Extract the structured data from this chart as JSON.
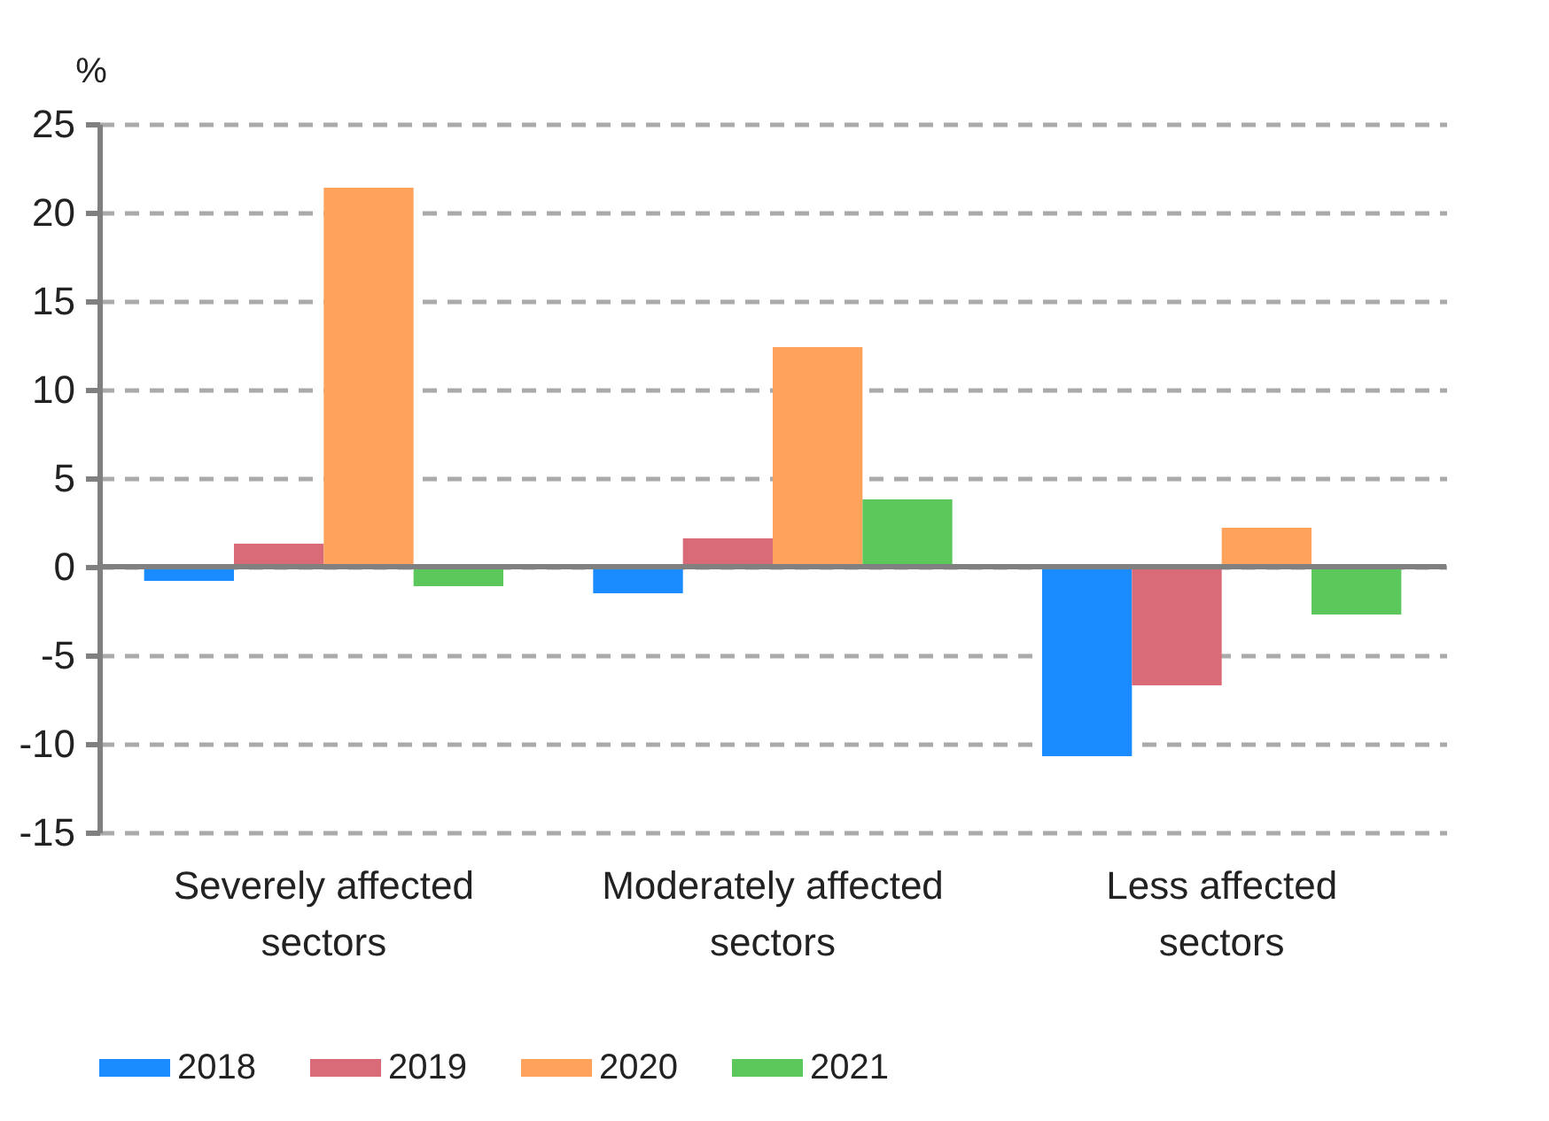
{
  "chart_data": {
    "type": "bar",
    "ylabel": "%",
    "categories": [
      "Severely affected sectors",
      "Moderately affected sectors",
      "Less affected sectors"
    ],
    "series": [
      {
        "name": "2018",
        "color": "#1a8cff",
        "values": [
          -0.8,
          -1.5,
          -10.7
        ]
      },
      {
        "name": "2019",
        "color": "#d96b78",
        "values": [
          1.3,
          1.6,
          -6.7
        ]
      },
      {
        "name": "2020",
        "color": "#ffa35c",
        "values": [
          21.4,
          12.4,
          2.2
        ]
      },
      {
        "name": "2021",
        "color": "#5cc85c",
        "values": [
          -1.1,
          3.8,
          -2.7
        ]
      }
    ],
    "ylim": [
      -15,
      25
    ],
    "yticks": [
      -15,
      -10,
      -5,
      0,
      5,
      10,
      15,
      20,
      25
    ],
    "grid": "y",
    "legend": "bottom"
  }
}
